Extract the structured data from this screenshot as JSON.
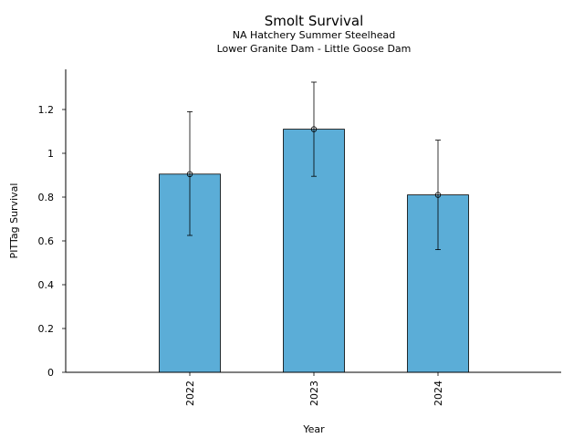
{
  "chart_data": {
    "type": "bar",
    "title": "Smolt Survival",
    "subtitle_lines": [
      "NA Hatchery Summer Steelhead",
      "Lower Granite Dam - Little Goose Dam"
    ],
    "xlabel": "Year",
    "ylabel": "PITTag Survival",
    "categories": [
      "2022",
      "2023",
      "2024"
    ],
    "values": [
      0.905,
      1.11,
      0.81
    ],
    "error_bars": [
      {
        "lower": 0.625,
        "upper": 1.19
      },
      {
        "lower": 0.895,
        "upper": 1.325
      },
      {
        "lower": 0.56,
        "upper": 1.06
      }
    ],
    "ylim": [
      0,
      1.4
    ],
    "yticks": [
      0,
      0.2,
      0.4,
      0.6,
      0.8,
      1,
      1.2
    ],
    "ytick_labels": [
      "0",
      "0.2",
      "0.4",
      "0.6",
      "0.8",
      "1",
      "1.2"
    ],
    "grid": false,
    "bar_color": "#5BADD7",
    "edge_color": "#000000"
  }
}
